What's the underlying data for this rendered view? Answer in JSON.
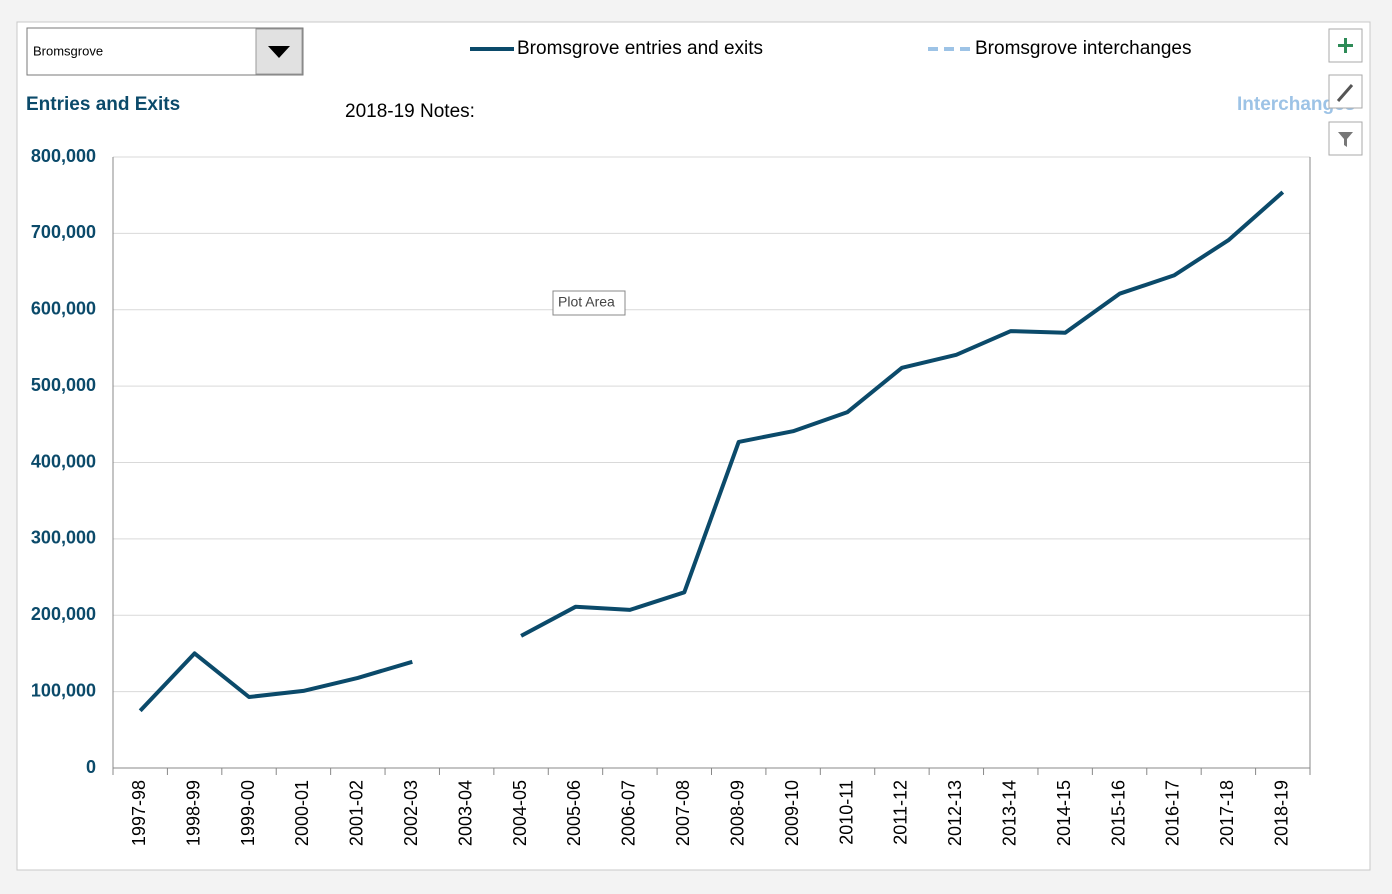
{
  "chart_data": {
    "type": "line",
    "dropdown": "Bromsgrove",
    "ylabel": "Entries and Exits",
    "y2label": "Interchanges",
    "annotations": [
      "2018-19 Notes:",
      "Plot Area"
    ],
    "categories": [
      "1997-98",
      "1998-99",
      "1999-00",
      "2000-01",
      "2001-02",
      "2002-03",
      "2003-04",
      "2004-05",
      "2005-06",
      "2006-07",
      "2007-08",
      "2008-09",
      "2009-10",
      "2010-11",
      "2011-12",
      "2012-13",
      "2013-14",
      "2014-15",
      "2015-16",
      "2016-17",
      "2017-18",
      "2018-19"
    ],
    "series": [
      {
        "name": "Bromsgrove entries and exits",
        "color": "#0b4a6a",
        "values": [
          75000,
          150000,
          93000,
          101000,
          118000,
          139000,
          null,
          173000,
          211000,
          207000,
          230000,
          427000,
          441000,
          466000,
          524000,
          541000,
          572000,
          570000,
          621000,
          645000,
          691000,
          754000
        ]
      },
      {
        "name": "Bromsgrove interchanges",
        "color": "#9dc3e6",
        "axis": "y2",
        "dashed": true,
        "values": [
          null,
          null,
          null,
          null,
          null,
          null,
          null,
          null,
          null,
          null,
          null,
          null,
          null,
          null,
          null,
          null,
          null,
          null,
          null,
          null,
          null,
          null
        ]
      }
    ],
    "ylim": [
      0,
      800000
    ],
    "yticks": [
      0,
      {
        "value": 100000,
        "label": "100,000"
      },
      {
        "value": 200000,
        "label": "200,000"
      },
      {
        "value": 300000,
        "label": "300,000"
      },
      {
        "value": 400000,
        "label": "400,000"
      },
      {
        "value": 500000,
        "label": "500,000"
      },
      {
        "value": 600000,
        "label": "600,000"
      },
      {
        "value": 700000,
        "label": "700,000"
      },
      {
        "value": 800000,
        "label": "800,000"
      }
    ],
    "grid": true
  }
}
